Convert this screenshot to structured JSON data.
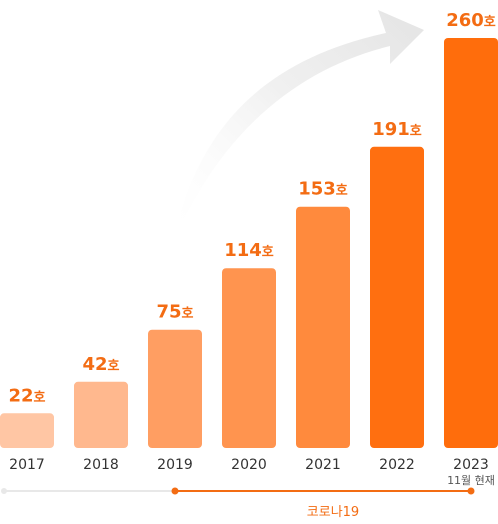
{
  "chart_data": {
    "type": "bar",
    "categories": [
      "2017",
      "2018",
      "2019",
      "2020",
      "2021",
      "2022",
      "2023"
    ],
    "values": [
      22,
      42,
      75,
      114,
      153,
      191,
      260
    ],
    "value_labels": [
      "22호",
      "42호",
      "75호",
      "114호",
      "153호",
      "191호",
      "260호"
    ],
    "bar_colors": [
      "#ffc6a4",
      "#ffb88e",
      "#ff9e62",
      "#ff944f",
      "#ff8a3d",
      "#ff6f10",
      "#ff6d0c"
    ],
    "last_category_note": "11월 현재",
    "covid_label": "코로나19",
    "timeline_colors": {
      "before": "#e8e8e8",
      "covid": "#f36c13"
    },
    "ylim": [
      0,
      260
    ],
    "grid": false,
    "legend": false
  }
}
